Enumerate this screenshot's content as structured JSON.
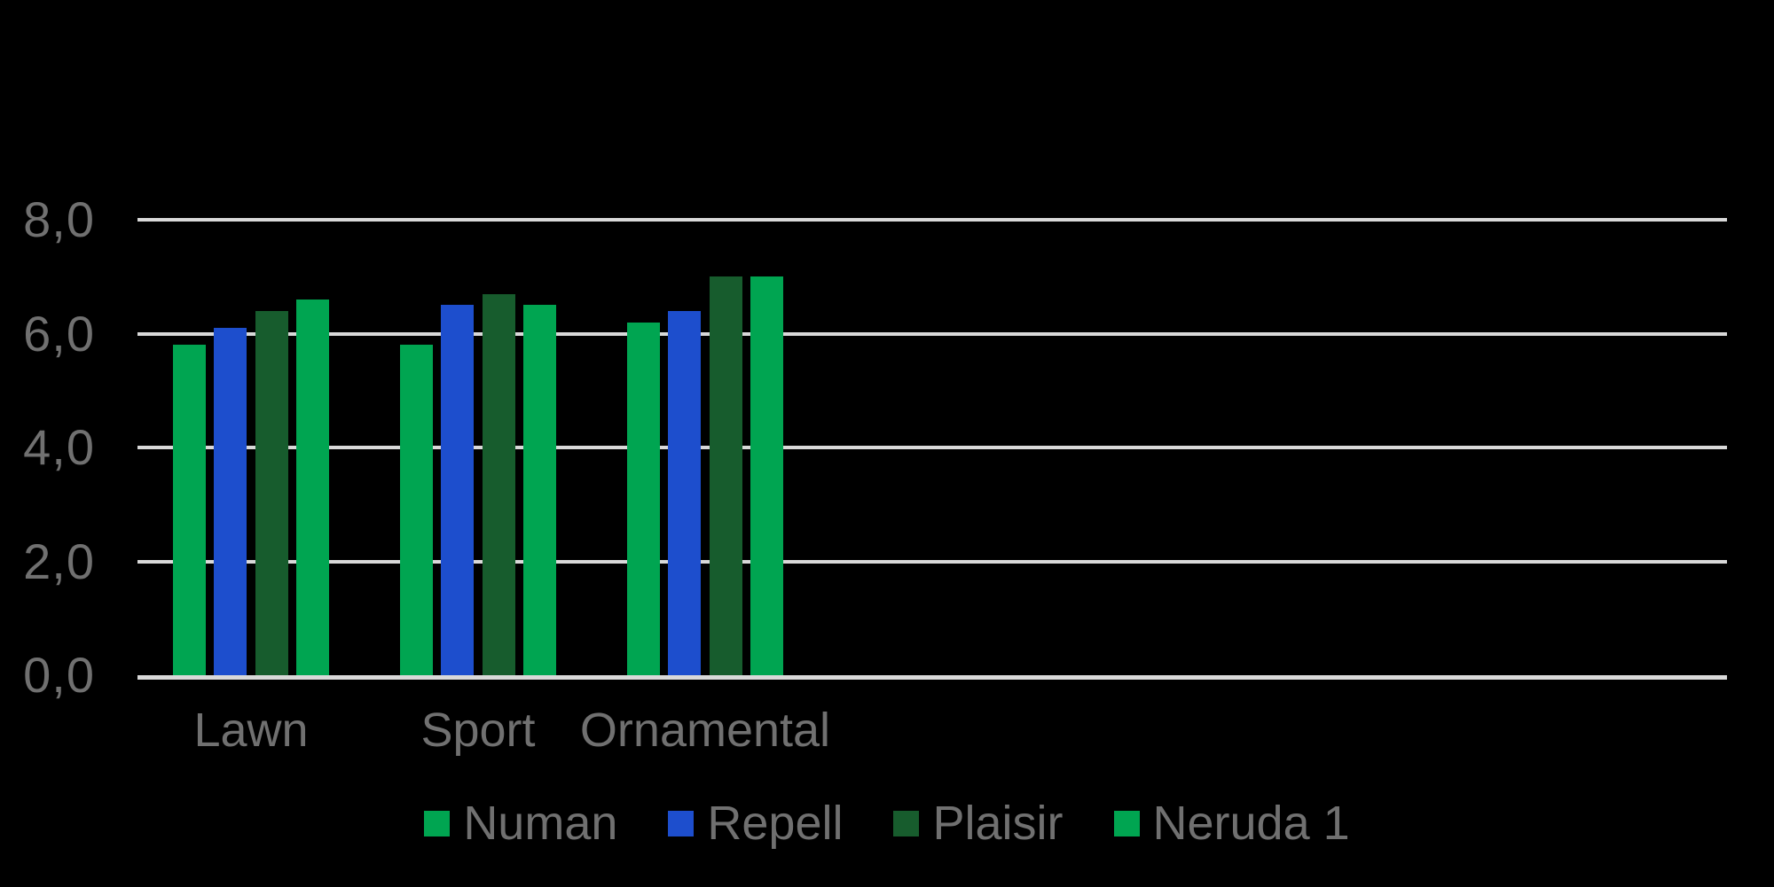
{
  "chart_data": {
    "type": "bar",
    "title": "",
    "xlabel": "",
    "ylabel": "",
    "categories": [
      "Lawn",
      "Sport",
      "Ornamental"
    ],
    "series": [
      {
        "name": "Numan",
        "color": "#00A551",
        "values": [
          5.8,
          5.8,
          6.2
        ]
      },
      {
        "name": "Repell",
        "color": "#1D4ECD",
        "values": [
          6.1,
          6.5,
          6.4
        ]
      },
      {
        "name": "Plaisir",
        "color": "#175C2D",
        "values": [
          6.4,
          6.7,
          7.0
        ]
      },
      {
        "name": "Neruda 1",
        "color": "#00A551",
        "values": [
          6.6,
          6.5,
          7.0
        ]
      }
    ],
    "ylim": [
      0,
      8
    ],
    "yticks": [
      {
        "value": 0,
        "label": "0,0"
      },
      {
        "value": 2,
        "label": "2,0"
      },
      {
        "value": 4,
        "label": "4,0"
      },
      {
        "value": 6,
        "label": "6,0"
      },
      {
        "value": 8,
        "label": "8,0"
      }
    ],
    "decimal_separator": ",",
    "grid": true,
    "legend_position": "bottom",
    "category_slots": 7,
    "colors": {
      "background": "#000000",
      "text": "#707070",
      "gridline": "#D9D9D9"
    }
  }
}
